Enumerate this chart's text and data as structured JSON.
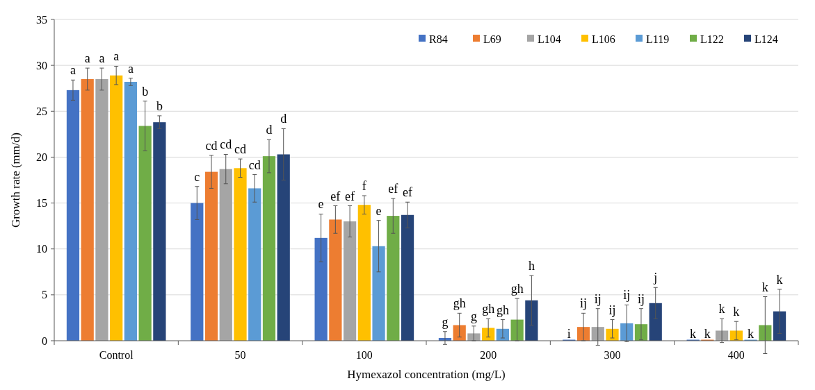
{
  "chart_data": {
    "type": "bar",
    "xlabel": "Hymexazol concentration (mg/L)",
    "ylabel": "Growth rate (mm/d)",
    "categories": [
      "Control",
      "50",
      "100",
      "200",
      "300",
      "400"
    ],
    "ylim": [
      0,
      35
    ],
    "yticks": [
      0,
      5,
      10,
      15,
      20,
      25,
      30,
      35
    ],
    "grid": "y",
    "legend": "top right",
    "series": [
      {
        "name": "R84",
        "color": "#4472c4",
        "values": [
          27.3,
          15.0,
          11.2,
          0.3,
          0,
          0
        ],
        "errors": [
          1.1,
          1.8,
          2.6,
          0.7,
          null,
          null
        ],
        "value_labels": [
          "a",
          "c",
          "e",
          "g",
          "i",
          "k"
        ]
      },
      {
        "name": "L69",
        "color": "#ed7d31",
        "values": [
          28.5,
          18.4,
          13.2,
          1.7,
          1.5,
          0
        ],
        "errors": [
          1.2,
          1.8,
          1.5,
          1.3,
          1.5,
          null
        ],
        "value_labels": [
          "a",
          "cd",
          "ef",
          "gh",
          "ij",
          "k"
        ]
      },
      {
        "name": "L104",
        "color": "#a5a5a5",
        "values": [
          28.5,
          18.7,
          13.0,
          0.8,
          1.5,
          1.1
        ],
        "errors": [
          1.2,
          1.6,
          1.7,
          0.8,
          2.0,
          1.3
        ],
        "value_labels": [
          "a",
          "cd",
          "ef",
          "g",
          "ij",
          "k"
        ]
      },
      {
        "name": "L106",
        "color": "#ffc000",
        "values": [
          28.9,
          18.8,
          14.8,
          1.4,
          1.3,
          1.1
        ],
        "errors": [
          1.0,
          1.0,
          1.0,
          1.0,
          1.0,
          1.0
        ],
        "value_labels": [
          "a",
          "cd",
          "f",
          "gh",
          "ij",
          "k"
        ]
      },
      {
        "name": "L119",
        "color": "#5b9bd5",
        "values": [
          28.2,
          16.6,
          10.3,
          1.3,
          1.9,
          0
        ],
        "errors": [
          0.4,
          1.5,
          2.8,
          1.0,
          2.0,
          null
        ],
        "value_labels": [
          "a",
          "cd",
          "e",
          "gh",
          "ij",
          "k"
        ]
      },
      {
        "name": "L122",
        "color": "#70ad47",
        "values": [
          23.4,
          20.1,
          13.6,
          2.3,
          1.8,
          1.7
        ],
        "errors": [
          2.7,
          1.8,
          1.9,
          2.3,
          1.7,
          3.1
        ],
        "value_labels": [
          "b",
          "d",
          "ef",
          "gh",
          "ij",
          "k"
        ]
      },
      {
        "name": "L124",
        "color": "#264478",
        "values": [
          23.8,
          20.3,
          13.7,
          4.4,
          4.1,
          3.2
        ],
        "errors": [
          0.7,
          2.8,
          1.4,
          2.7,
          1.7,
          2.4
        ],
        "value_labels": [
          "b",
          "d",
          "ef",
          "h",
          "j",
          "k"
        ]
      }
    ]
  }
}
